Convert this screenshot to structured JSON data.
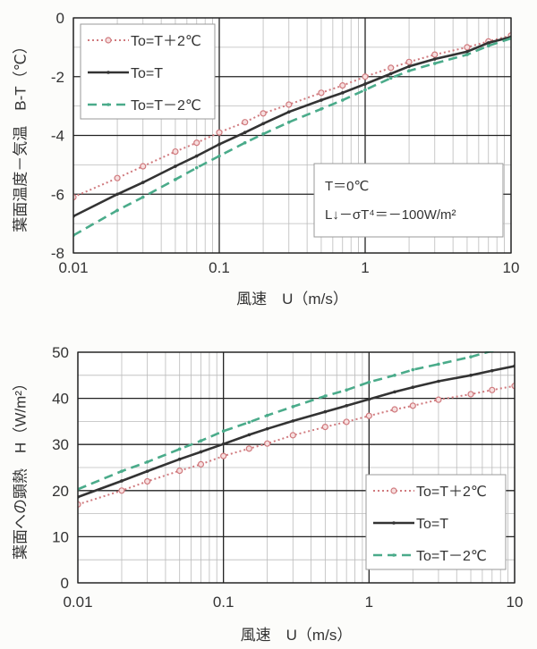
{
  "chart_data": [
    {
      "type": "line",
      "xscale": "log",
      "xlim": [
        0.01,
        10
      ],
      "ylim": [
        -8,
        0
      ],
      "xlabel": "風速　U（m/s）",
      "ylabel": "葉面温度－気温　B-T（℃）",
      "xticks": [
        "0.01",
        "0.1",
        "1",
        "10"
      ],
      "yticks": [
        "0",
        "-2",
        "-4",
        "-6",
        "-8"
      ],
      "grid": true,
      "legend_placement": "top-left",
      "annotation": [
        "T＝0℃",
        "L↓－σT⁴＝－100W/m²"
      ],
      "x": [
        0.01,
        0.02,
        0.03,
        0.05,
        0.07,
        0.1,
        0.15,
        0.2,
        0.3,
        0.5,
        0.7,
        1,
        1.5,
        2,
        3,
        5,
        7,
        10
      ],
      "series": [
        {
          "name": "To=T＋2℃",
          "color": "#d07a7e",
          "style": "dotted-circle",
          "values": [
            -6.1,
            -5.45,
            -5.05,
            -4.55,
            -4.25,
            -3.9,
            -3.55,
            -3.25,
            -2.95,
            -2.55,
            -2.3,
            -2.0,
            -1.7,
            -1.5,
            -1.25,
            -1.0,
            -0.8,
            -0.6
          ]
        },
        {
          "name": "To=T",
          "color": "#333333",
          "style": "solid",
          "values": [
            -6.75,
            -6.0,
            -5.6,
            -5.05,
            -4.7,
            -4.3,
            -3.9,
            -3.6,
            -3.2,
            -2.8,
            -2.55,
            -2.25,
            -1.9,
            -1.65,
            -1.4,
            -1.15,
            -0.85,
            -0.65
          ]
        },
        {
          "name": "To=T－2℃",
          "color": "#4aab8a",
          "style": "dashed",
          "values": [
            -7.4,
            -6.55,
            -6.1,
            -5.5,
            -5.1,
            -4.7,
            -4.25,
            -3.95,
            -3.55,
            -3.1,
            -2.8,
            -2.45,
            -2.05,
            -1.8,
            -1.55,
            -1.25,
            -0.95,
            -0.7
          ]
        }
      ]
    },
    {
      "type": "line",
      "xscale": "log",
      "xlim": [
        0.01,
        10
      ],
      "ylim": [
        0,
        50
      ],
      "xlabel": "風速　U（m/s）",
      "ylabel": "葉面への顕熱　H（W/m²）",
      "xticks": [
        "0.01",
        "0.1",
        "1",
        "10"
      ],
      "yticks": [
        "50",
        "40",
        "30",
        "20",
        "10",
        "0"
      ],
      "grid": true,
      "legend_placement": "bottom-right",
      "x": [
        0.01,
        0.02,
        0.03,
        0.05,
        0.07,
        0.1,
        0.15,
        0.2,
        0.3,
        0.5,
        0.7,
        1,
        1.5,
        2,
        3,
        5,
        7,
        10
      ],
      "series": [
        {
          "name": "To=T＋2℃",
          "color": "#d07a7e",
          "style": "dotted-circle",
          "values": [
            17,
            20,
            22,
            24.3,
            25.7,
            27.5,
            29.1,
            30.2,
            32,
            33.8,
            34.9,
            36.2,
            37.6,
            38.4,
            39.7,
            40.9,
            41.8,
            42.7
          ]
        },
        {
          "name": "To=T",
          "color": "#333333",
          "style": "solid",
          "values": [
            18.6,
            22.1,
            24.2,
            26.8,
            28.4,
            30.1,
            32.1,
            33.4,
            35.1,
            37.1,
            38.4,
            39.8,
            41.4,
            42.4,
            43.7,
            45,
            46,
            47
          ]
        },
        {
          "name": "To=T－2℃",
          "color": "#4aab8a",
          "style": "dashed",
          "values": [
            20.3,
            24.2,
            26.2,
            29,
            30.8,
            32.9,
            34.8,
            36.3,
            38.2,
            40.5,
            41.8,
            43.5,
            45,
            46.2,
            47.4,
            49,
            50.3,
            51.3
          ]
        }
      ]
    }
  ]
}
